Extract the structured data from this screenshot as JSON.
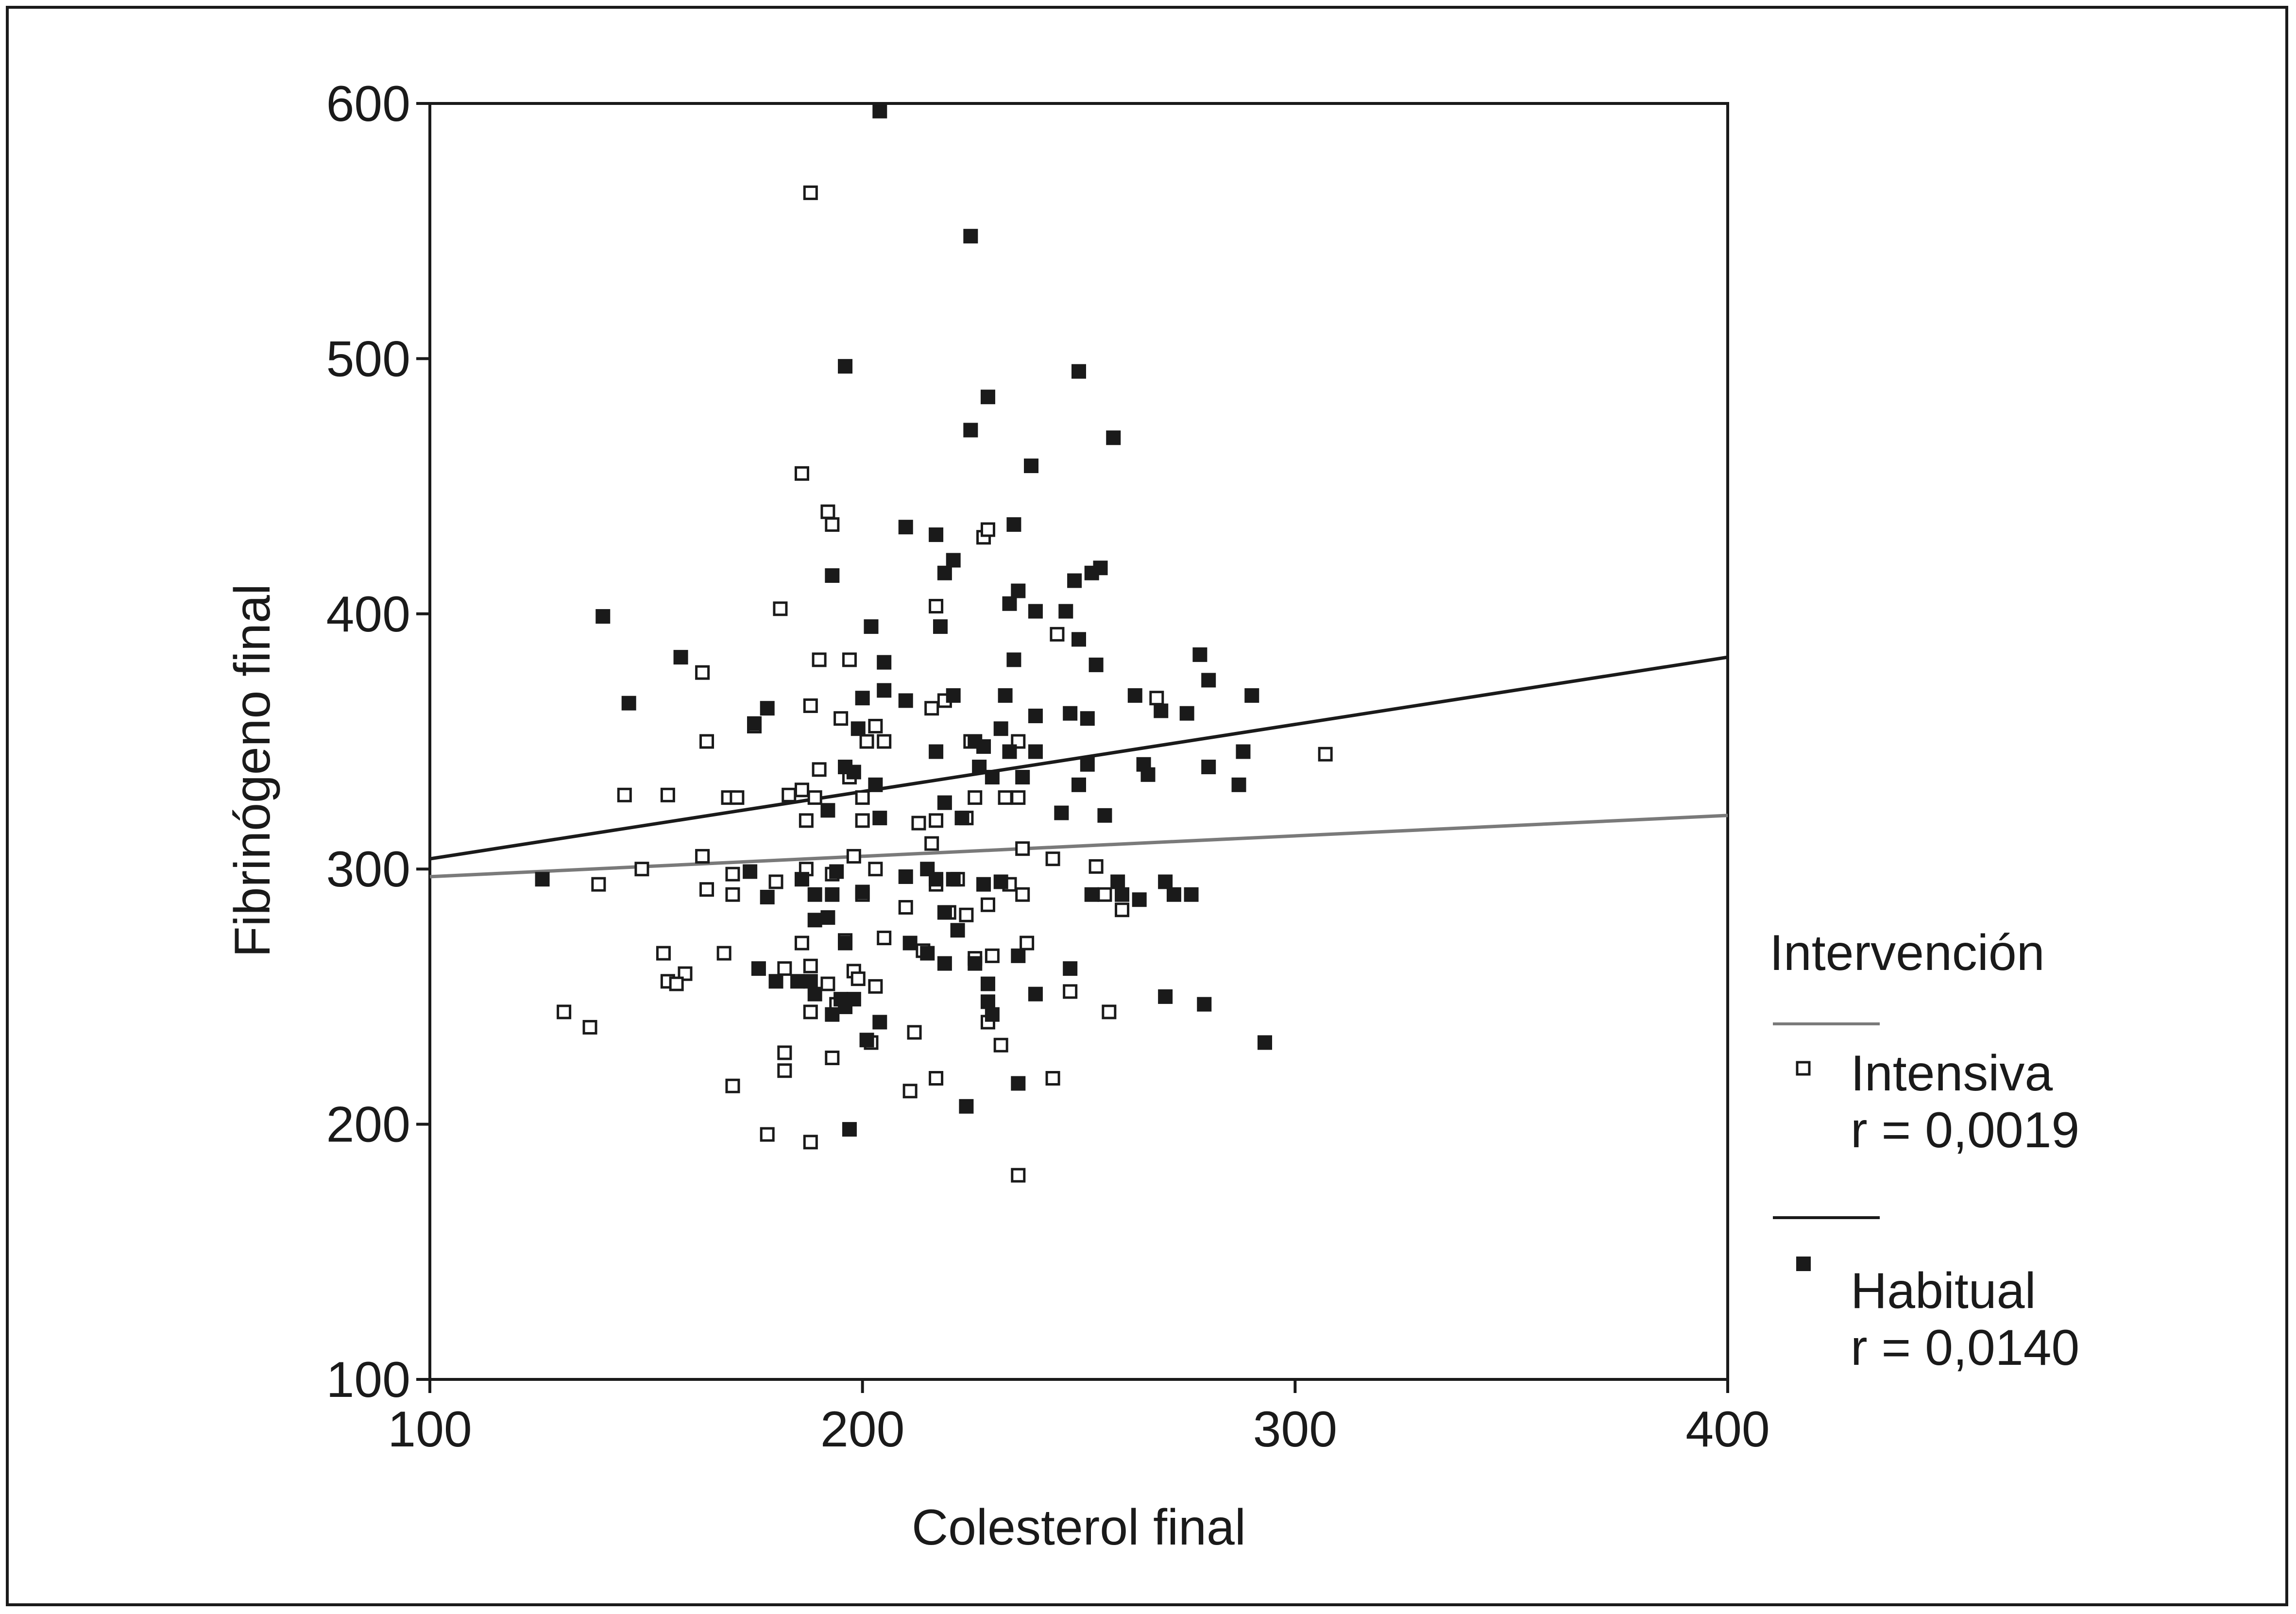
{
  "chart_data": {
    "type": "scatter",
    "xlabel": "Colesterol final",
    "ylabel": "Fibrinógeno final",
    "xlim": [
      100,
      400
    ],
    "ylim": [
      100,
      600
    ],
    "xticks": [
      100,
      200,
      300,
      400
    ],
    "yticks": [
      100,
      200,
      300,
      400,
      500,
      600
    ],
    "grid": false,
    "legend": {
      "title": "Intervención",
      "placement": "right"
    },
    "series": [
      {
        "name": "Intensiva",
        "stat": "r = 0,0019",
        "marker": "open-square",
        "color": "#1a1a1a",
        "line_color": "#7a7a7a",
        "fit": {
          "x": [
            100,
            400
          ],
          "y": [
            297,
            321
          ]
        },
        "points": [
          [
            188,
            565
          ],
          [
            186,
            455
          ],
          [
            192,
            440
          ],
          [
            193,
            435
          ],
          [
            228,
            430
          ],
          [
            229,
            433
          ],
          [
            181,
            402
          ],
          [
            217,
            403
          ],
          [
            245,
            392
          ],
          [
            163,
            377
          ],
          [
            190,
            382
          ],
          [
            197,
            382
          ],
          [
            268,
            367
          ],
          [
            188,
            364
          ],
          [
            195,
            359
          ],
          [
            203,
            356
          ],
          [
            216,
            363
          ],
          [
            219,
            366
          ],
          [
            164,
            350
          ],
          [
            175,
            356
          ],
          [
            201,
            350
          ],
          [
            205,
            350
          ],
          [
            225,
            350
          ],
          [
            236,
            350
          ],
          [
            307,
            345
          ],
          [
            145,
            329
          ],
          [
            155,
            329
          ],
          [
            183,
            329
          ],
          [
            186,
            331
          ],
          [
            189,
            328
          ],
          [
            200,
            328
          ],
          [
            190,
            339
          ],
          [
            197,
            336
          ],
          [
            226,
            328
          ],
          [
            233,
            328
          ],
          [
            236,
            328
          ],
          [
            169,
            328
          ],
          [
            171,
            328
          ],
          [
            187,
            319
          ],
          [
            200,
            319
          ],
          [
            217,
            319
          ],
          [
            213,
            318
          ],
          [
            224,
            320
          ],
          [
            163,
            305
          ],
          [
            149,
            300
          ],
          [
            139,
            294
          ],
          [
            164,
            292
          ],
          [
            170,
            298
          ],
          [
            170,
            290
          ],
          [
            187,
            300
          ],
          [
            193,
            298
          ],
          [
            198,
            305
          ],
          [
            203,
            300
          ],
          [
            216,
            310
          ],
          [
            217,
            294
          ],
          [
            222,
            296
          ],
          [
            234,
            294
          ],
          [
            237,
            308
          ],
          [
            244,
            304
          ],
          [
            254,
            301
          ],
          [
            256,
            290
          ],
          [
            260,
            284
          ],
          [
            180,
            295
          ],
          [
            200,
            290
          ],
          [
            210,
            285
          ],
          [
            220,
            283
          ],
          [
            224,
            282
          ],
          [
            229,
            286
          ],
          [
            237,
            290
          ],
          [
            154,
            267
          ],
          [
            159,
            259
          ],
          [
            168,
            267
          ],
          [
            155,
            256
          ],
          [
            157,
            255
          ],
          [
            182,
            261
          ],
          [
            186,
            271
          ],
          [
            196,
            272
          ],
          [
            198,
            260
          ],
          [
            205,
            273
          ],
          [
            214,
            268
          ],
          [
            226,
            265
          ],
          [
            230,
            266
          ],
          [
            238,
            271
          ],
          [
            188,
            262
          ],
          [
            192,
            255
          ],
          [
            194,
            247
          ],
          [
            199,
            257
          ],
          [
            203,
            254
          ],
          [
            248,
            252
          ],
          [
            257,
            244
          ],
          [
            131,
            244
          ],
          [
            137,
            238
          ],
          [
            188,
            244
          ],
          [
            212,
            236
          ],
          [
            229,
            240
          ],
          [
            232,
            231
          ],
          [
            202,
            232
          ],
          [
            182,
            228
          ],
          [
            182,
            221
          ],
          [
            193,
            226
          ],
          [
            170,
            215
          ],
          [
            211,
            213
          ],
          [
            217,
            218
          ],
          [
            244,
            218
          ],
          [
            178,
            196
          ],
          [
            188,
            193
          ],
          [
            236,
            180
          ]
        ]
      },
      {
        "name": "Habitual",
        "stat": "r = 0,0140",
        "marker": "filled-square",
        "color": "#1a1a1a",
        "line_color": "#1a1a1a",
        "fit": {
          "x": [
            100,
            400
          ],
          "y": [
            304,
            383
          ]
        },
        "points": [
          [
            204,
            597
          ],
          [
            225,
            548
          ],
          [
            196,
            497
          ],
          [
            250,
            495
          ],
          [
            229,
            485
          ],
          [
            225,
            472
          ],
          [
            258,
            469
          ],
          [
            239,
            458
          ],
          [
            210,
            434
          ],
          [
            235,
            435
          ],
          [
            217,
            431
          ],
          [
            221,
            421
          ],
          [
            219,
            416
          ],
          [
            193,
            415
          ],
          [
            253,
            416
          ],
          [
            255,
            418
          ],
          [
            249,
            413
          ],
          [
            236,
            409
          ],
          [
            140,
            399
          ],
          [
            234,
            404
          ],
          [
            240,
            401
          ],
          [
            247,
            401
          ],
          [
            202,
            395
          ],
          [
            218,
            395
          ],
          [
            250,
            390
          ],
          [
            278,
            384
          ],
          [
            158,
            383
          ],
          [
            205,
            381
          ],
          [
            235,
            382
          ],
          [
            254,
            380
          ],
          [
            280,
            374
          ],
          [
            146,
            365
          ],
          [
            178,
            363
          ],
          [
            200,
            367
          ],
          [
            205,
            370
          ],
          [
            210,
            366
          ],
          [
            221,
            368
          ],
          [
            233,
            368
          ],
          [
            248,
            361
          ],
          [
            252,
            359
          ],
          [
            263,
            368
          ],
          [
            269,
            362
          ],
          [
            275,
            361
          ],
          [
            290,
            368
          ],
          [
            175,
            357
          ],
          [
            199,
            355
          ],
          [
            217,
            346
          ],
          [
            226,
            350
          ],
          [
            228,
            348
          ],
          [
            232,
            355
          ],
          [
            240,
            360
          ],
          [
            234,
            346
          ],
          [
            240,
            346
          ],
          [
            252,
            341
          ],
          [
            265,
            341
          ],
          [
            266,
            337
          ],
          [
            280,
            340
          ],
          [
            288,
            346
          ],
          [
            287,
            333
          ],
          [
            203,
            333
          ],
          [
            196,
            340
          ],
          [
            198,
            338
          ],
          [
            227,
            340
          ],
          [
            230,
            336
          ],
          [
            237,
            336
          ],
          [
            250,
            333
          ],
          [
            192,
            323
          ],
          [
            204,
            320
          ],
          [
            223,
            320
          ],
          [
            256,
            321
          ],
          [
            246,
            322
          ],
          [
            219,
            326
          ],
          [
            126,
            296
          ],
          [
            174,
            299
          ],
          [
            186,
            296
          ],
          [
            194,
            299
          ],
          [
            210,
            297
          ],
          [
            215,
            300
          ],
          [
            217,
            296
          ],
          [
            221,
            296
          ],
          [
            228,
            294
          ],
          [
            232,
            295
          ],
          [
            259,
            295
          ],
          [
            260,
            290
          ],
          [
            270,
            295
          ],
          [
            178,
            289
          ],
          [
            189,
            290
          ],
          [
            193,
            290
          ],
          [
            200,
            291
          ],
          [
            253,
            290
          ],
          [
            264,
            288
          ],
          [
            272,
            290
          ],
          [
            276,
            290
          ],
          [
            189,
            280
          ],
          [
            192,
            281
          ],
          [
            219,
            283
          ],
          [
            222,
            276
          ],
          [
            196,
            271
          ],
          [
            211,
            271
          ],
          [
            215,
            267
          ],
          [
            219,
            263
          ],
          [
            226,
            263
          ],
          [
            236,
            266
          ],
          [
            240,
            251
          ],
          [
            248,
            261
          ],
          [
            176,
            261
          ],
          [
            180,
            256
          ],
          [
            185,
            256
          ],
          [
            188,
            256
          ],
          [
            189,
            251
          ],
          [
            195,
            249
          ],
          [
            196,
            246
          ],
          [
            198,
            249
          ],
          [
            229,
            255
          ],
          [
            229,
            248
          ],
          [
            193,
            243
          ],
          [
            230,
            243
          ],
          [
            270,
            250
          ],
          [
            279,
            247
          ],
          [
            204,
            240
          ],
          [
            293,
            232
          ],
          [
            201,
            233
          ],
          [
            236,
            216
          ],
          [
            224,
            207
          ],
          [
            197,
            198
          ]
        ]
      }
    ]
  }
}
